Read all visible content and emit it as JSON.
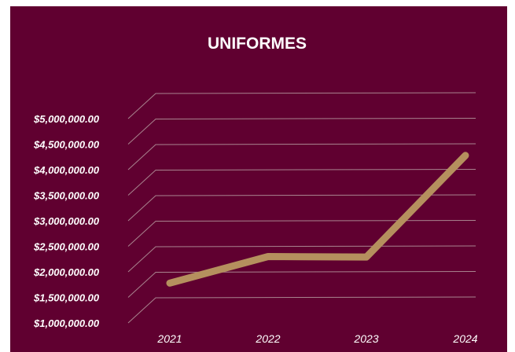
{
  "chart_data": {
    "type": "line",
    "title": "UNIFORMES",
    "categories": [
      "2021",
      "2022",
      "2023",
      "2024"
    ],
    "series": [
      {
        "values": [
          1780000,
          2300000,
          2290000,
          4280000
        ]
      }
    ],
    "y_tick_labels": [
      "$1,000,000.00",
      "$1,500,000.00",
      "$2,000,000.00",
      "$2,500,000.00",
      "$3,000,000.00",
      "$3,500,000.00",
      "$4,000,000.00",
      "$4,500,000.00",
      "$5,000,000.00"
    ],
    "ylim": [
      1000000,
      5000000
    ],
    "grid": true,
    "legend": "none"
  },
  "colors": {
    "background": "#600030",
    "line": "#b5905e",
    "grid": "#a9848f",
    "text": "#ffffff"
  }
}
